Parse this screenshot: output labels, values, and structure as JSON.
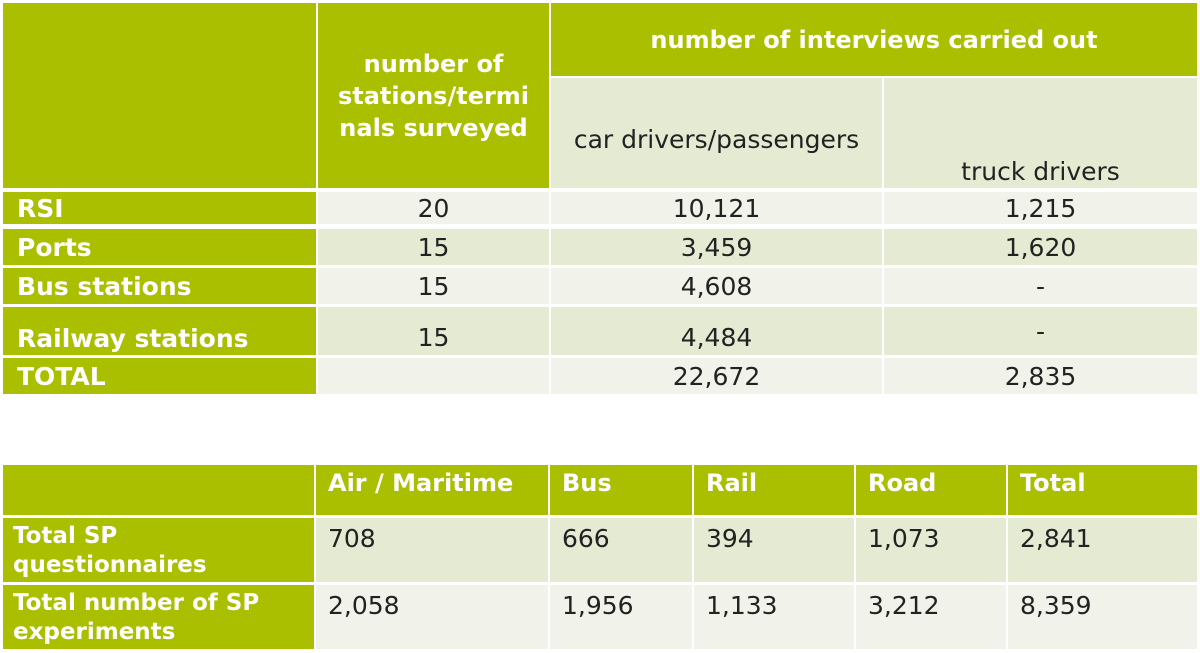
{
  "survey_table": {
    "header_stations": "number of stations/termi nals surveyed",
    "header_interviews": "number of interviews carried out",
    "header_car": "car drivers/passengers",
    "header_truck": "truck drivers",
    "rows": [
      {
        "label": "RSI",
        "stations": "20",
        "car": "10,121",
        "truck": "1,215"
      },
      {
        "label": "Ports",
        "stations": "15",
        "car": "3,459",
        "truck": "1,620"
      },
      {
        "label": "Bus stations",
        "stations": "15",
        "car": "4,608",
        "truck": "-"
      },
      {
        "label": "Railway stations",
        "stations": "15",
        "car": "4,484",
        "truck": "-"
      },
      {
        "label": "TOTAL",
        "stations": "",
        "car": "22,672",
        "truck": "2,835"
      }
    ]
  },
  "sp_table": {
    "columns": [
      "Air / Maritime",
      "Bus",
      "Rail",
      "Road",
      "Total"
    ],
    "rows": [
      {
        "label": "Total SP questionnaires",
        "values": [
          "708",
          "666",
          "394",
          "1,073",
          "2,841"
        ]
      },
      {
        "label": "Total number of SP experiments",
        "values": [
          "2,058",
          "1,956",
          "1,133",
          "3,212",
          "8,359"
        ]
      }
    ]
  },
  "colors": {
    "accent_green": "#a9bf00",
    "light_row": "#e5ead3",
    "lighter_row": "#f1f3ea"
  }
}
